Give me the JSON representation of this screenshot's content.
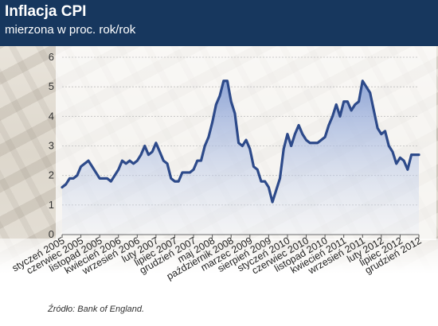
{
  "header": {
    "title": "Inflacja CPI",
    "subtitle": "mierzona w proc. rok/rok"
  },
  "source": "Źródło: Bank of England.",
  "colors": {
    "header_bg": "#17375e",
    "line": "#2d4a8a",
    "fill_top": "#7f99d2",
    "fill_bottom": "#e6ecf8"
  },
  "chart_data": {
    "type": "area",
    "title": "Inflacja CPI",
    "subtitle": "mierzona w proc. rok/rok",
    "xlabel": "",
    "ylabel": "",
    "ylim": [
      0,
      6
    ],
    "yticks": [
      0,
      1,
      2,
      3,
      4,
      5,
      6
    ],
    "grid": true,
    "legend": "none",
    "x_tick_labels": [
      "styczeń 2005",
      "czerwiec 2005",
      "listopad 2005",
      "kwiecień 2006",
      "wrzesień 2006",
      "luty 2007",
      "lipiec 2007",
      "grudzień 2007",
      "maj 2008",
      "październik 2008",
      "marzec 2009",
      "sierpień 2009",
      "styczeń 2010",
      "czerwiec 2010",
      "listopad 2010",
      "kwiecień 2011",
      "wrzesień 2011",
      "luty 2012",
      "lipiec 2012",
      "grudzień 2012"
    ],
    "series": [
      {
        "values": [
          1.6,
          1.7,
          1.9,
          1.9,
          2.0,
          2.3,
          2.4,
          2.5,
          2.3,
          2.1,
          1.9,
          1.9,
          1.9,
          1.8,
          2.0,
          2.2,
          2.5,
          2.4,
          2.5,
          2.4,
          2.5,
          2.7,
          3.0,
          2.7,
          2.8,
          3.1,
          2.8,
          2.5,
          2.4,
          1.9,
          1.8,
          1.8,
          2.1,
          2.1,
          2.1,
          2.2,
          2.5,
          2.5,
          3.0,
          3.3,
          3.8,
          4.4,
          4.7,
          5.2,
          5.2,
          4.5,
          4.1,
          3.1,
          3.0,
          3.2,
          2.9,
          2.3,
          2.2,
          1.8,
          1.8,
          1.6,
          1.1,
          1.5,
          1.9,
          2.9,
          3.4,
          3.0,
          3.4,
          3.7,
          3.4,
          3.2,
          3.1,
          3.1,
          3.1,
          3.2,
          3.3,
          3.7,
          4.0,
          4.4,
          4.0,
          4.5,
          4.5,
          4.2,
          4.4,
          4.5,
          5.2,
          5.0,
          4.8,
          4.2,
          3.6,
          3.4,
          3.5,
          3.0,
          2.8,
          2.4,
          2.6,
          2.5,
          2.2,
          2.7,
          2.7,
          2.7
        ]
      }
    ]
  }
}
